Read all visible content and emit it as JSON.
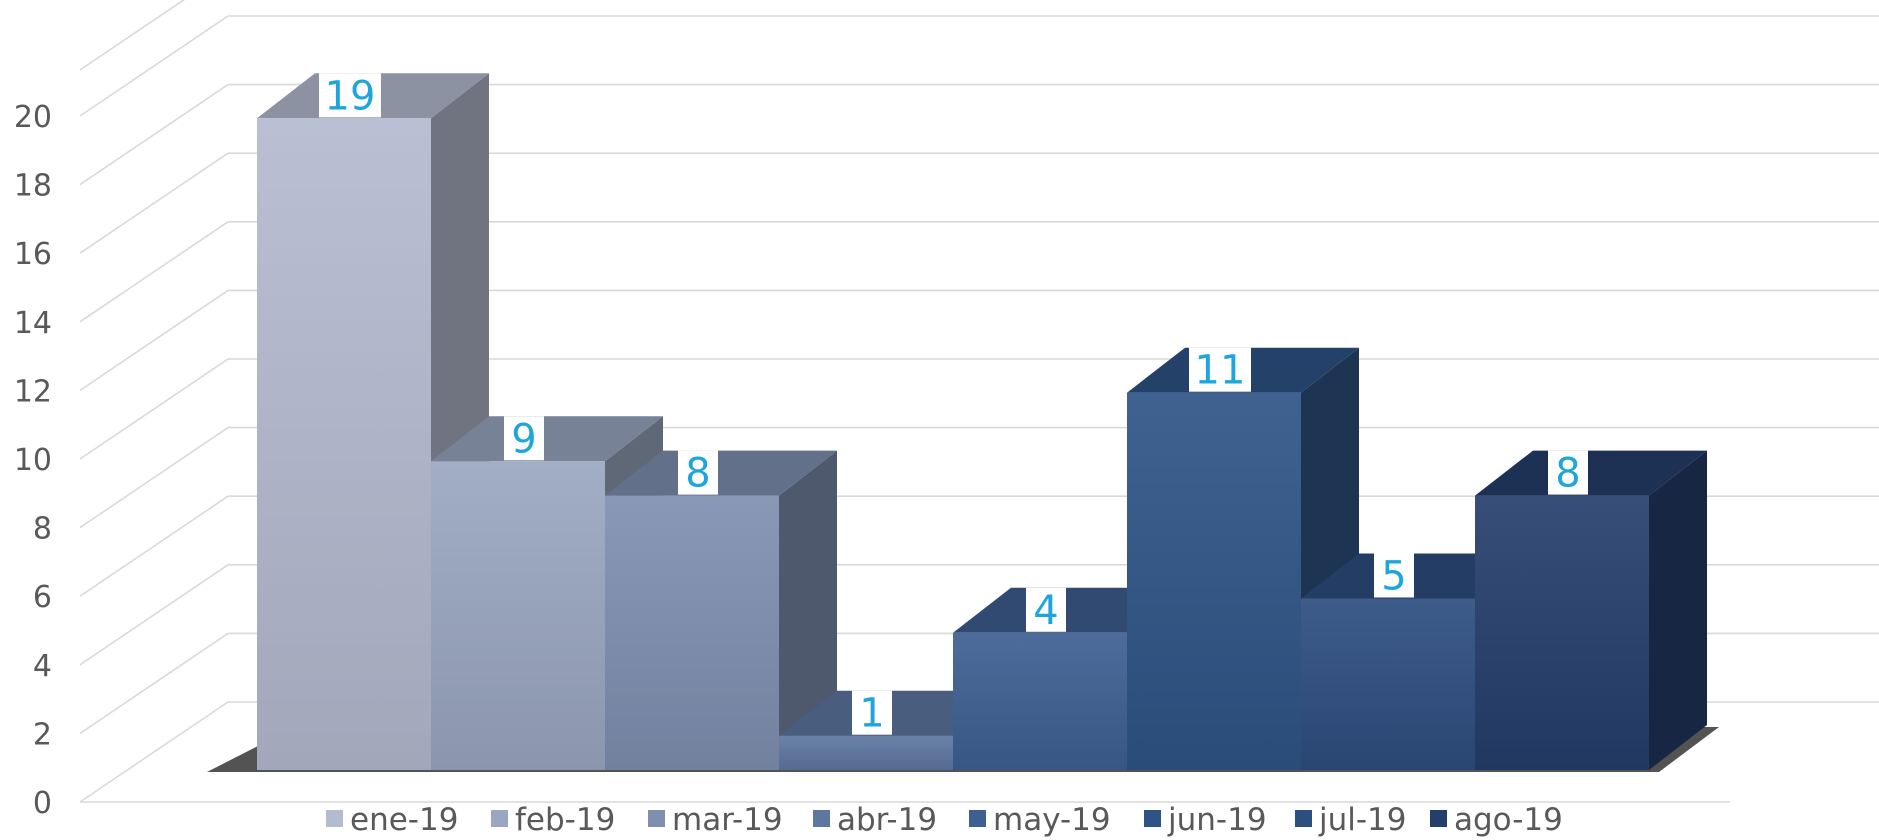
{
  "chart_data": {
    "type": "bar",
    "style": "3d-column",
    "categories": [
      "ene-19",
      "feb-19",
      "mar-19",
      "abr-19",
      "may-19",
      "jun-19",
      "jul-19",
      "ago-19"
    ],
    "values": [
      19,
      9,
      8,
      1,
      4,
      11,
      5,
      8
    ],
    "ylim": [
      0,
      20
    ],
    "yticks": [
      0,
      2,
      4,
      6,
      8,
      10,
      12,
      14,
      16,
      18,
      20
    ],
    "grid": true,
    "legend": "bottom",
    "data_labels": true,
    "colors": [
      "#b3bbcf",
      "#9aa7c0",
      "#7f8fb0",
      "#5e77a1",
      "#3e5f92",
      "#2e5486",
      "#2d4e80",
      "#253f6c"
    ],
    "label_color": "#1ea6dc"
  }
}
